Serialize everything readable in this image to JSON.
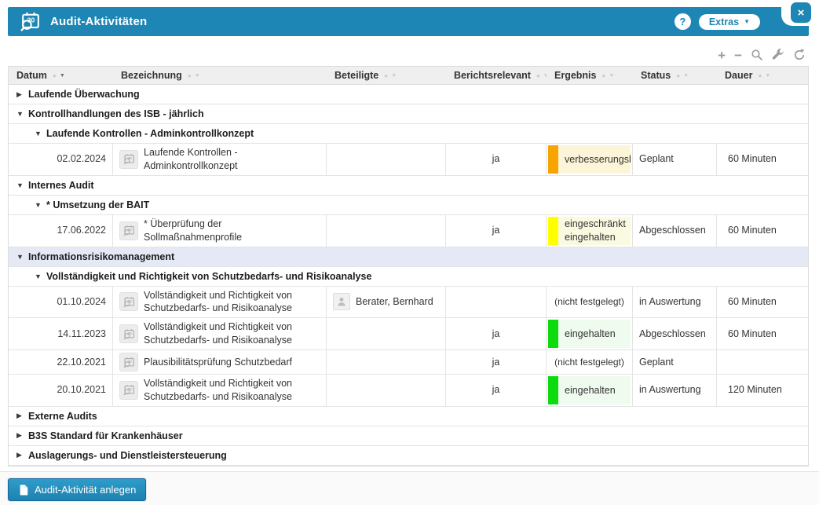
{
  "window": {
    "title": "Audit-Aktivitäten",
    "help_label": "?",
    "extras_label": "Extras",
    "close_glyph": "×"
  },
  "toolbar": {
    "plus_label": "+",
    "minus_label": "−",
    "icon_names": [
      "search-icon",
      "wrench-icon",
      "refresh-icon"
    ]
  },
  "icons": {
    "sort_asc": "▲",
    "sort_desc": "▼",
    "group_expanded": "▼",
    "group_collapsed": "▶"
  },
  "colors": {
    "titlebar_blue": "#1e86b4",
    "selected_group_bg": "#e4e9f5",
    "result_styles": {
      "orange": {
        "bar": "#f7a500",
        "bg": "#fdf5d8"
      },
      "yellow": {
        "bar": "#ffff00",
        "bg": "#fafae1"
      },
      "green": {
        "bar": "#0ddb0d",
        "bg": "#effbef"
      },
      "none": {
        "bar": "",
        "bg": ""
      }
    }
  },
  "table": {
    "columns": [
      {
        "label": "Datum",
        "sort": "desc"
      },
      {
        "label": "Bezeichnung",
        "sort": "none"
      },
      {
        "label": "Beteiligte",
        "sort": "none"
      },
      {
        "label": "Berichtsrelevant",
        "sort": "none"
      },
      {
        "label": "Ergebnis",
        "sort": "none"
      },
      {
        "label": "Status",
        "sort": "none"
      },
      {
        "label": "Dauer",
        "sort": "none"
      }
    ],
    "rows": [
      {
        "type": "group",
        "level": 1,
        "expanded": false,
        "selected": false,
        "label": "Laufende Überwachung"
      },
      {
        "type": "group",
        "level": 1,
        "expanded": true,
        "selected": false,
        "label": "Kontrollhandlungen des ISB - jährlich"
      },
      {
        "type": "group",
        "level": 2,
        "expanded": true,
        "selected": false,
        "label": "Laufende Kontrollen - Adminkontrollkonzept"
      },
      {
        "type": "data",
        "datum": "02.02.2024",
        "bezeichnung": "Laufende Kontrollen - Adminkontrollkonzept",
        "beteiligte": "",
        "berichtsrelevant": "ja",
        "ergebnis": {
          "label": "verbesserungsbedürftig",
          "style": "orange"
        },
        "status": "Geplant",
        "dauer": "60 Minuten"
      },
      {
        "type": "group",
        "level": 1,
        "expanded": true,
        "selected": false,
        "label": "Internes Audit"
      },
      {
        "type": "group",
        "level": 2,
        "expanded": true,
        "selected": false,
        "label": "* Umsetzung der BAIT"
      },
      {
        "type": "data",
        "datum": "17.06.2022",
        "bezeichnung": "* Überprüfung der Sollmaßnahmenprofile",
        "beteiligte": "",
        "berichtsrelevant": "ja",
        "ergebnis": {
          "label": "eingeschränkt eingehalten",
          "style": "yellow"
        },
        "status": "Abgeschlossen",
        "dauer": "60 Minuten"
      },
      {
        "type": "group",
        "level": 1,
        "expanded": true,
        "selected": true,
        "label": "Informationsrisikomanagement"
      },
      {
        "type": "group",
        "level": 2,
        "expanded": true,
        "selected": false,
        "label": "Vollständigkeit und Richtigkeit von Schutzbedarfs- und Risikoanalyse"
      },
      {
        "type": "data",
        "datum": "01.10.2024",
        "bezeichnung": "Vollständigkeit und Richtigkeit von Schutzbedarfs- und Risikoanalyse",
        "beteiligte": "Berater, Bernhard",
        "berichtsrelevant": "",
        "ergebnis": {
          "label": "(nicht festgelegt)",
          "style": "none"
        },
        "status": "in Auswertung",
        "dauer": "60 Minuten"
      },
      {
        "type": "data",
        "datum": "14.11.2023",
        "bezeichnung": "Vollständigkeit und Richtigkeit von Schutzbedarfs- und Risikoanalyse",
        "beteiligte": "",
        "berichtsrelevant": "ja",
        "ergebnis": {
          "label": "eingehalten",
          "style": "green"
        },
        "status": "Abgeschlossen",
        "dauer": "60 Minuten"
      },
      {
        "type": "data",
        "datum": "22.10.2021",
        "bezeichnung": "Plausibilitätsprüfung Schutzbedarf",
        "beteiligte": "",
        "berichtsrelevant": "ja",
        "ergebnis": {
          "label": "(nicht festgelegt)",
          "style": "none"
        },
        "status": "Geplant",
        "dauer": ""
      },
      {
        "type": "data",
        "datum": "20.10.2021",
        "bezeichnung": "Vollständigkeit und Richtigkeit von Schutzbedarfs- und Risikoanalyse",
        "beteiligte": "",
        "berichtsrelevant": "ja",
        "ergebnis": {
          "label": "eingehalten",
          "style": "green"
        },
        "status": "in Auswertung",
        "dauer": "120 Minuten"
      },
      {
        "type": "group",
        "level": 1,
        "expanded": false,
        "selected": false,
        "label": "Externe Audits"
      },
      {
        "type": "group",
        "level": 1,
        "expanded": false,
        "selected": false,
        "label": "B3S Standard für Krankenhäuser"
      },
      {
        "type": "group",
        "level": 1,
        "expanded": false,
        "selected": false,
        "label": "Auslagerungs- und Dienstleistersteuerung"
      }
    ]
  },
  "footer": {
    "create_button_label": "Audit-Aktivität anlegen"
  }
}
